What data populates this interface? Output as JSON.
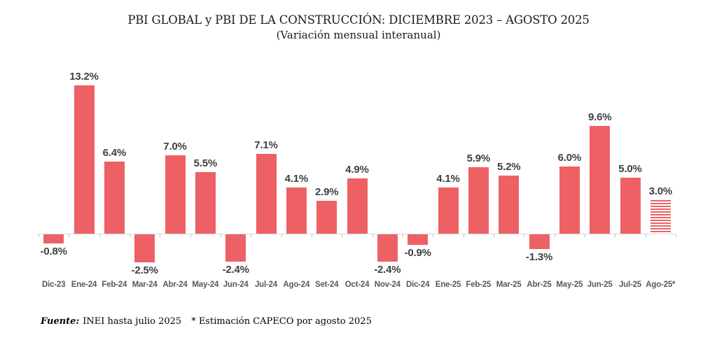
{
  "title": "PBI GLOBAL y PBI DE LA CONSTRUCCIÓN: DICIEMBRE 2023 – AGOSTO 2025",
  "subtitle": "(Variación mensual interanual)",
  "footer": {
    "source_label": "Fuente:",
    "source_text": "INEI hasta julio 2025",
    "note_text": "* Estimación CAPECO por agosto 2025"
  },
  "colors": {
    "bar": "#ED6165",
    "axis_line": "#D9D9D9",
    "tick": "#BFBFBF",
    "value_label": "#404040",
    "axis_label": "#595959"
  },
  "chart_data": {
    "type": "bar",
    "title": "PBI GLOBAL y PBI DE LA CONSTRUCCIÓN: DICIEMBRE 2023 – AGOSTO 2025",
    "subtitle": "(Variación mensual interanual)",
    "unit": "%",
    "categories": [
      "Dic-23",
      "Ene-24",
      "Feb-24",
      "Mar-24",
      "Abr-24",
      "May-24",
      "Jun-24",
      "Jul-24",
      "Ago-24",
      "Set-24",
      "Oct-24",
      "Nov-24",
      "Dic-24",
      "Ene-25",
      "Feb-25",
      "Mar-25",
      "Abr-25",
      "May-25",
      "Jun-25",
      "Jul-25",
      "Ago-25*"
    ],
    "values": [
      -0.8,
      13.2,
      6.4,
      -2.5,
      7.0,
      5.5,
      -2.4,
      7.1,
      4.1,
      2.9,
      4.9,
      -2.4,
      -0.9,
      4.1,
      5.9,
      5.2,
      -1.3,
      6.0,
      9.6,
      5.0,
      3.0
    ],
    "labels": [
      "-0.8%",
      "13.2%",
      "6.4%",
      "-2.5%",
      "7.0%",
      "5.5%",
      "-2.4%",
      "7.1%",
      "4.1%",
      "2.9%",
      "4.9%",
      "-2.4%",
      "-0.9%",
      "4.1%",
      "5.9%",
      "5.2%",
      "-1.3%",
      "6.0%",
      "9.6%",
      "5.0%",
      "3.0%"
    ],
    "estimated": [
      false,
      false,
      false,
      false,
      false,
      false,
      false,
      false,
      false,
      false,
      false,
      false,
      false,
      false,
      false,
      false,
      false,
      false,
      false,
      false,
      true
    ],
    "ylim": [
      -3.5,
      14.5
    ],
    "grid": false,
    "legend": "none",
    "value_labels_shown": true,
    "baseline": 0
  }
}
